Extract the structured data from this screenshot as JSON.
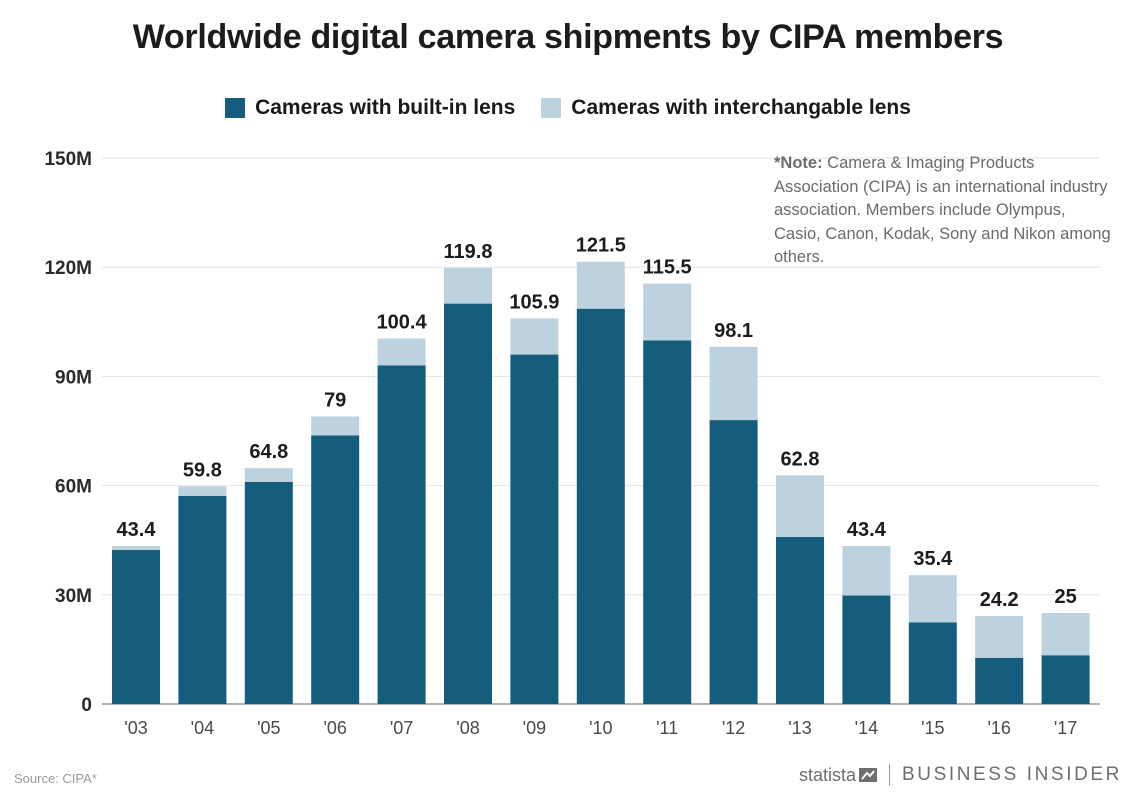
{
  "title": "Worldwide digital camera shipments by CIPA members",
  "legend": [
    {
      "label": "Cameras with built-in lens",
      "color": "#145d7c"
    },
    {
      "label": "Cameras with interchangable lens",
      "color": "#bcd3df"
    }
  ],
  "note": {
    "prefix": "*Note:",
    "text": " Camera & Imaging Products Association (CIPA) is an international industry association. Members include Olympus, Casio, Canon, Kodak, Sony and Nikon among others."
  },
  "footer": {
    "source": "Source: CIPA*",
    "statista": "statista",
    "brand": "BUSINESS INSIDER"
  },
  "chart_data": {
    "type": "bar",
    "stacked": true,
    "title": "Worldwide digital camera shipments by CIPA members",
    "xlabel": "",
    "ylabel": "",
    "ylim": [
      0,
      150
    ],
    "y_ticks": [
      0,
      30,
      60,
      90,
      120,
      150
    ],
    "y_tick_labels": [
      "0",
      "30M",
      "60M",
      "90M",
      "120M",
      "150M"
    ],
    "grid": true,
    "legend_position": "top-center",
    "categories": [
      "'03",
      "'04",
      "'05",
      "'06",
      "'07",
      "'08",
      "'09",
      "'10",
      "'11",
      "'12",
      "'13",
      "'14",
      "'15",
      "'16",
      "'17"
    ],
    "series": [
      {
        "name": "Cameras with built-in lens",
        "color": "#145d7c",
        "values": [
          42.3,
          57.2,
          61.0,
          73.8,
          93.0,
          110.0,
          96.0,
          108.6,
          99.9,
          78.0,
          45.9,
          29.8,
          22.4,
          12.7,
          13.4
        ]
      },
      {
        "name": "Cameras with interchangable lens",
        "color": "#bcd3df",
        "values": [
          1.1,
          2.6,
          3.8,
          5.2,
          7.4,
          9.8,
          9.9,
          12.9,
          15.6,
          20.1,
          16.9,
          13.6,
          13.0,
          11.5,
          11.6
        ]
      }
    ],
    "totals": [
      43.4,
      59.8,
      64.8,
      79,
      100.4,
      119.8,
      105.9,
      121.5,
      115.5,
      98.1,
      62.8,
      43.4,
      35.4,
      24.2,
      25
    ],
    "total_labels": [
      "43.4",
      "59.8",
      "64.8",
      "79",
      "100.4",
      "119.8",
      "105.9",
      "121.5",
      "115.5",
      "98.1",
      "62.8",
      "43.4",
      "35.4",
      "24.2",
      "25"
    ]
  }
}
